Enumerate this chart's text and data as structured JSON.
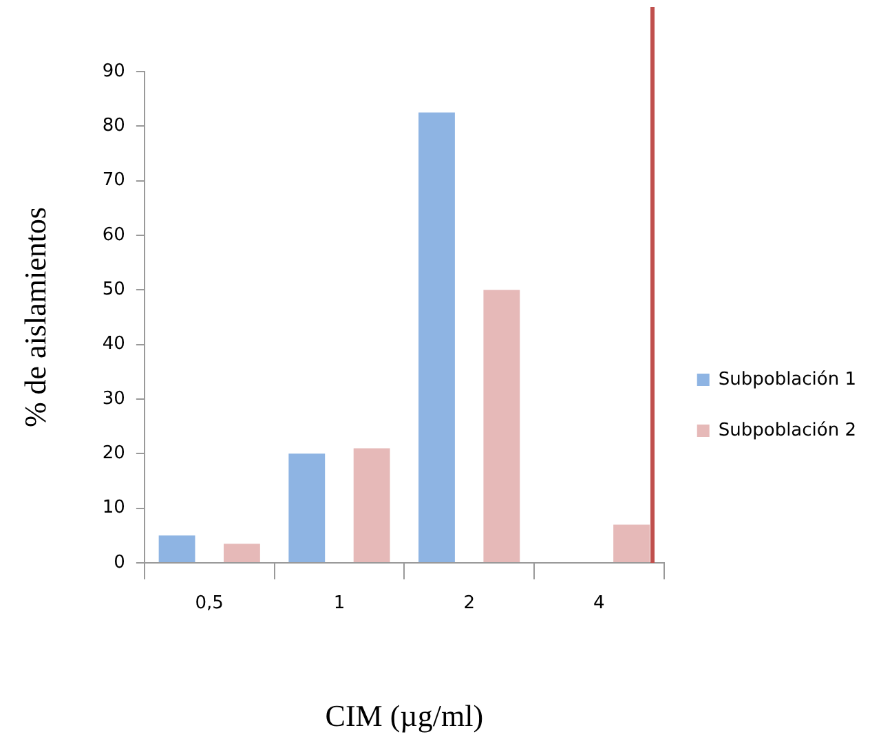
{
  "chart_data": {
    "type": "bar",
    "xlabel": "CIM (µg/ml)",
    "ylabel": "% de aislamientos",
    "categories": [
      "0,5",
      "1",
      "2",
      "4"
    ],
    "series": [
      {
        "name": "Subpoblación 1",
        "color": "#8eb4e3",
        "values": [
          5,
          20,
          82.5,
          0
        ]
      },
      {
        "name": "Subpoblación 2",
        "color": "#e6b9b8",
        "values": [
          3.5,
          21,
          50,
          7
        ]
      }
    ],
    "ylim": [
      0,
      90
    ],
    "yticks": [
      0,
      10,
      20,
      30,
      40,
      50,
      60,
      70,
      80,
      90
    ],
    "grid": false,
    "legend": "right",
    "ref_lines": [
      {
        "axis": "x",
        "value": "4",
        "color": "#c0504d"
      }
    ]
  }
}
